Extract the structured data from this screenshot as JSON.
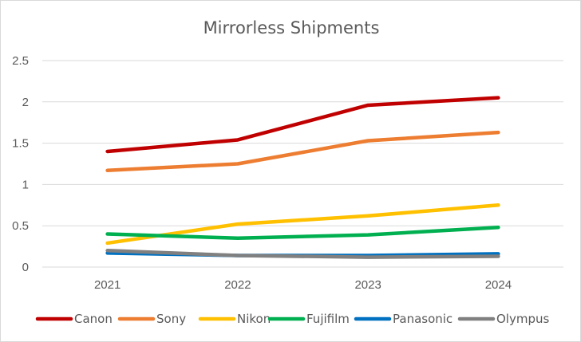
{
  "chart_data": {
    "type": "line",
    "title": "Mirrorless Shipments",
    "xlabel": "",
    "ylabel": "",
    "categories": [
      "2021",
      "2022",
      "2023",
      "2024"
    ],
    "ylim": [
      0,
      2.5
    ],
    "yticks": [
      "0",
      "0.5",
      "1",
      "1.5",
      "2",
      "2.5"
    ],
    "ytick_values": [
      0,
      0.5,
      1,
      1.5,
      2,
      2.5
    ],
    "grid": true,
    "legend_position": "bottom",
    "series": [
      {
        "name": "Canon",
        "color": "#C00000",
        "values": [
          1.4,
          1.54,
          1.96,
          2.05
        ]
      },
      {
        "name": "Sony",
        "color": "#ED7D31",
        "values": [
          1.17,
          1.25,
          1.53,
          1.63
        ]
      },
      {
        "name": "Nikon",
        "color": "#FFC000",
        "values": [
          0.29,
          0.52,
          0.62,
          0.75
        ]
      },
      {
        "name": "Fujifilm",
        "color": "#00B050",
        "values": [
          0.4,
          0.35,
          0.39,
          0.48
        ]
      },
      {
        "name": "Panasonic",
        "color": "#0070C0",
        "values": [
          0.17,
          0.14,
          0.14,
          0.16
        ]
      },
      {
        "name": "Olympus",
        "color": "#808080",
        "values": [
          0.2,
          0.14,
          0.12,
          0.13
        ]
      }
    ]
  }
}
